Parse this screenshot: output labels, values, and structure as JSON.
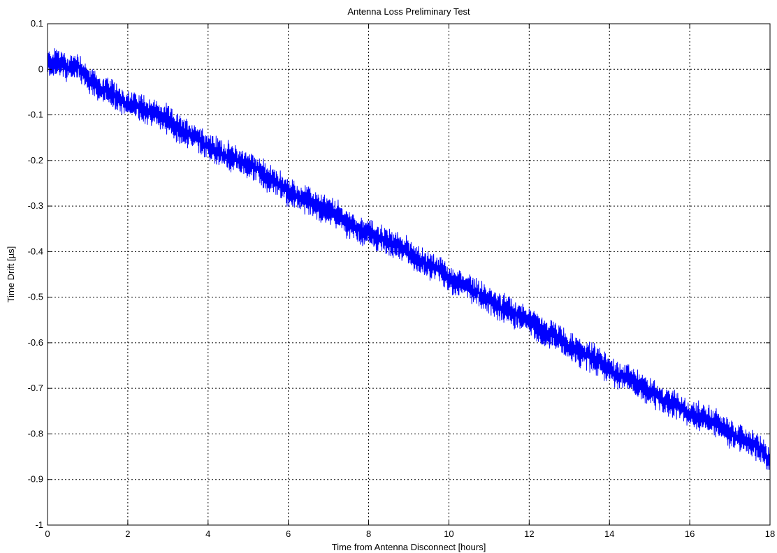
{
  "chart_data": {
    "type": "line",
    "title": "Antenna Loss Preliminary Test",
    "xlabel": "Time from Antenna Disconnect [hours]",
    "ylabel": "Time Drift [µs]",
    "xlim": [
      0,
      18
    ],
    "ylim": [
      -1,
      0.1
    ],
    "xticks": [
      0,
      2,
      4,
      6,
      8,
      10,
      12,
      14,
      16,
      18
    ],
    "xtick_labels": [
      "0",
      "2",
      "4",
      "6",
      "8",
      "10",
      "12",
      "14",
      "16",
      "18"
    ],
    "yticks": [
      0.1,
      0,
      -0.1,
      -0.2,
      -0.3,
      -0.4,
      -0.5,
      -0.6,
      -0.7,
      -0.8,
      -0.9,
      -1
    ],
    "ytick_labels": [
      "0.1",
      "0",
      "-0.1",
      "-0.2",
      "-0.3",
      "-0.4",
      "-0.5",
      "-0.6",
      "-0.7",
      "-0.8",
      "-0.9",
      "-1"
    ],
    "grid": true,
    "series": [
      {
        "color": "#0000ff",
        "x": [
          0,
          0.25,
          0.5,
          0.75,
          1,
          1.25,
          1.5,
          1.75,
          2,
          2.25,
          2.5,
          2.75,
          3,
          3.25,
          3.5,
          3.75,
          4,
          4.25,
          4.5,
          4.75,
          5,
          5.25,
          5.5,
          5.75,
          6,
          6.25,
          6.5,
          6.75,
          7,
          7.25,
          7.5,
          7.75,
          8,
          8.25,
          8.5,
          8.75,
          9,
          9.25,
          9.5,
          9.75,
          10,
          10.25,
          10.5,
          10.75,
          11,
          11.25,
          11.5,
          11.75,
          12,
          12.25,
          12.5,
          12.75,
          13,
          13.25,
          13.5,
          13.75,
          14,
          14.25,
          14.5,
          14.75,
          15,
          15.25,
          15.5,
          15.75,
          16,
          16.25,
          16.5,
          16.75,
          17,
          17.25,
          17.5,
          17.75,
          18
        ],
        "y": [
          0.01,
          0.02,
          0.0,
          0.01,
          -0.02,
          -0.04,
          -0.05,
          -0.06,
          -0.08,
          -0.08,
          -0.09,
          -0.1,
          -0.11,
          -0.13,
          -0.14,
          -0.15,
          -0.17,
          -0.18,
          -0.19,
          -0.2,
          -0.21,
          -0.22,
          -0.24,
          -0.25,
          -0.27,
          -0.28,
          -0.29,
          -0.3,
          -0.31,
          -0.32,
          -0.34,
          -0.35,
          -0.36,
          -0.37,
          -0.38,
          -0.39,
          -0.4,
          -0.42,
          -0.43,
          -0.44,
          -0.46,
          -0.47,
          -0.48,
          -0.49,
          -0.51,
          -0.52,
          -0.53,
          -0.54,
          -0.55,
          -0.57,
          -0.58,
          -0.59,
          -0.61,
          -0.62,
          -0.63,
          -0.64,
          -0.66,
          -0.67,
          -0.68,
          -0.69,
          -0.71,
          -0.72,
          -0.73,
          -0.74,
          -0.76,
          -0.76,
          -0.77,
          -0.78,
          -0.8,
          -0.81,
          -0.82,
          -0.83,
          -0.86
        ]
      }
    ]
  }
}
